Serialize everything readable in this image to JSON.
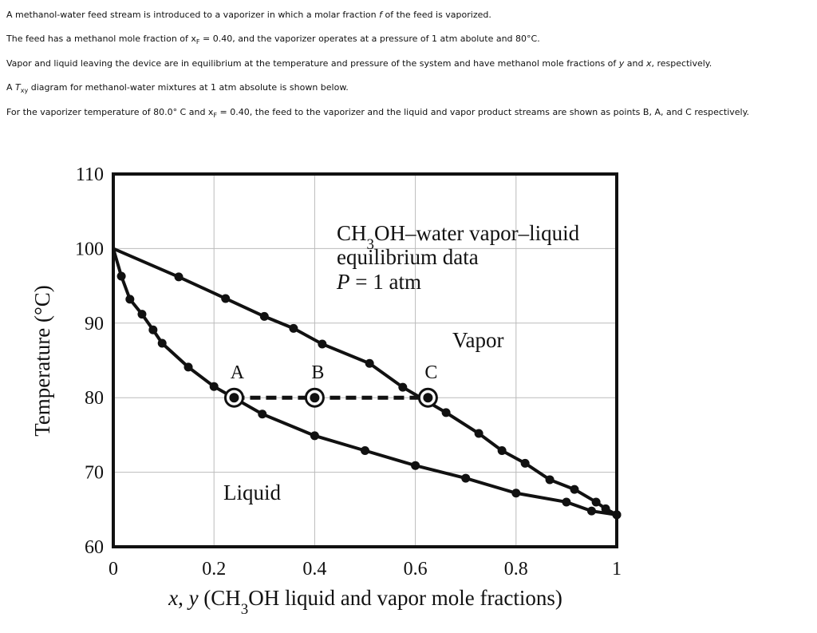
{
  "paragraphs": [
    [
      "A methanol-water feed stream is introduced to a vaporizer in which a molar fraction ",
      {
        "text": "f",
        "style": "italic"
      },
      " of the feed is vaporized."
    ],
    [
      "The feed has a methanol mole fraction of x",
      {
        "text": "F",
        "style": "sub"
      },
      " = 0.40, and the vaporizer operates at a pressure of 1 atm abolute and 80°C."
    ],
    [
      "Vapor and liquid leaving the device are in equilibrium at the temperature and pressure of the system and have methanol mole fractions of ",
      {
        "text": "y",
        "style": "italic"
      },
      " and ",
      {
        "text": "x",
        "style": "italic"
      },
      ", respectively."
    ],
    [
      "A ",
      {
        "text": "T",
        "style": "italic"
      },
      {
        "text": "xy",
        "style": "sub"
      },
      " diagram for methanol-water mixtures at 1 atm absolute is shown below."
    ],
    [
      "For the vaporizer temperature of 80.0° C and x",
      {
        "text": "F",
        "style": "sub"
      },
      " = 0.40, the feed to the vaporizer and the liquid and vapor product streams are shown as points B, A, and C respectively."
    ]
  ],
  "chart_data": {
    "type": "line",
    "title_lines": [
      [
        "CH",
        {
          "text": "3",
          "style": "sub"
        },
        "OH–water vapor–liquid"
      ],
      [
        "equilibrium data"
      ],
      [
        {
          "text": "P",
          "style": "italic"
        },
        " = 1 atm"
      ]
    ],
    "x_label": [
      {
        "text": "x",
        "style": "italic"
      },
      ", ",
      {
        "text": "y",
        "style": "italic"
      },
      " (CH",
      {
        "text": "3",
        "style": "sub"
      },
      "OH liquid and vapor mole fractions)"
    ],
    "y_label": "Temperature (°C)",
    "xlim": [
      0,
      1
    ],
    "ylim": [
      60,
      110
    ],
    "xticks": [
      0,
      0.2,
      0.4,
      0.6,
      0.8,
      1
    ],
    "yticks": [
      60,
      70,
      80,
      90,
      100,
      110
    ],
    "grid": true,
    "series": [
      {
        "name": "Liquid",
        "color": "#111111",
        "x": [
          0,
          0.016,
          0.033,
          0.057,
          0.079,
          0.097,
          0.149,
          0.2,
          0.296,
          0.4,
          0.5,
          0.6,
          0.7,
          0.8,
          0.9,
          0.95,
          1
        ],
        "y": [
          100,
          96.3,
          93.2,
          91.2,
          89.1,
          87.3,
          84.1,
          81.5,
          77.8,
          74.9,
          72.9,
          70.9,
          69.2,
          67.2,
          66,
          64.8,
          64.3
        ]
      },
      {
        "name": "Vapor",
        "color": "#111111",
        "x": [
          0,
          0.13,
          0.223,
          0.3,
          0.358,
          0.415,
          0.509,
          0.575,
          0.661,
          0.726,
          0.772,
          0.818,
          0.867,
          0.916,
          0.959,
          0.978,
          1
        ],
        "y": [
          100,
          96.2,
          93.3,
          90.9,
          89.3,
          87.2,
          84.6,
          81.4,
          78,
          75.2,
          72.9,
          71.2,
          69,
          67.7,
          66,
          65.1,
          64.3
        ]
      }
    ],
    "points": [
      {
        "label": "A",
        "x": 0.24,
        "y": 80
      },
      {
        "label": "B",
        "x": 0.4,
        "y": 80
      },
      {
        "label": "C",
        "x": 0.625,
        "y": 80
      }
    ]
  }
}
